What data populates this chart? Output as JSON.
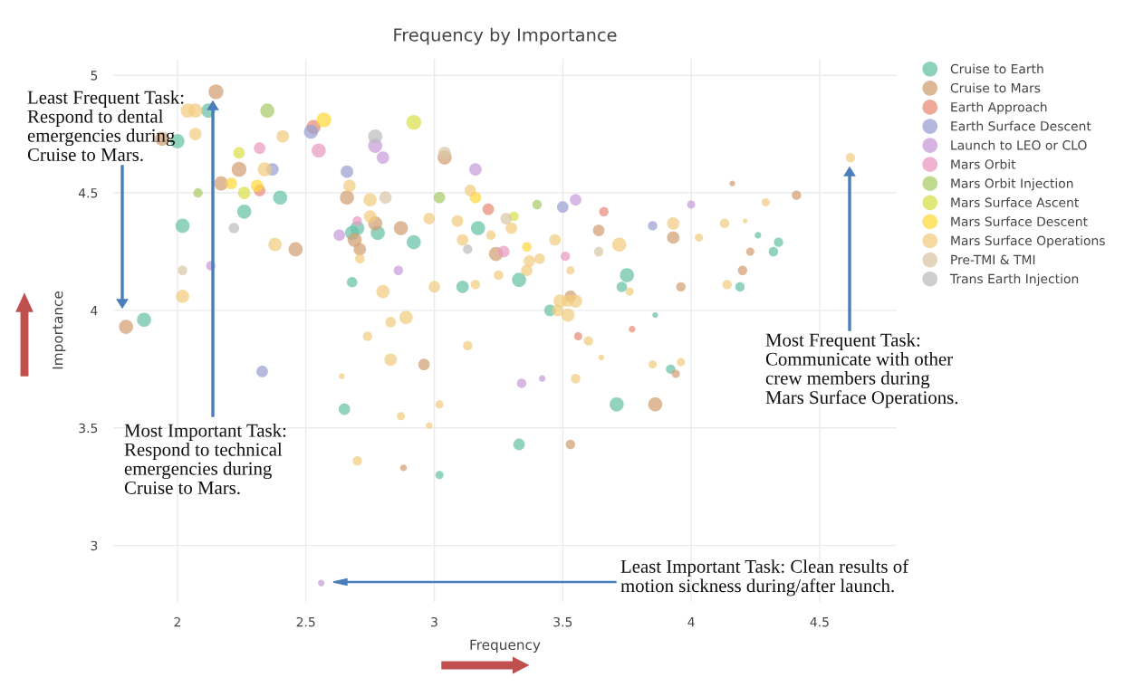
{
  "chart_data": {
    "type": "bubble",
    "title": "Frequency by Importance",
    "xlabel": "Frequency",
    "ylabel": "Importance",
    "xlim": [
      1.75,
      4.8
    ],
    "ylim": [
      2.76,
      5.07
    ],
    "xticks": [
      2,
      2.5,
      3,
      3.5,
      4,
      4.5
    ],
    "yticks": [
      3,
      3.5,
      4,
      4.5,
      5
    ],
    "grid": true,
    "legend": "top right",
    "marker": "circle",
    "series": [
      {
        "name": "Cruise to Earth",
        "color": "#66c2a5",
        "x": [
          2.12,
          2.0,
          2.4,
          2.26,
          2.02,
          1.87,
          2.7,
          2.68,
          2.78,
          2.68,
          3.17,
          2.92,
          3.11,
          3.33,
          3.45,
          3.75,
          3.73,
          3.86,
          3.92,
          4.26,
          4.34,
          4.32,
          4.19,
          2.65,
          3.71,
          3.33,
          3.02
        ],
        "values": [
          4.85,
          4.72,
          4.48,
          4.42,
          4.36,
          3.96,
          4.35,
          4.33,
          4.33,
          4.12,
          4.35,
          4.29,
          4.1,
          4.13,
          4.0,
          4.15,
          4.1,
          3.98,
          3.75,
          4.32,
          4.29,
          4.25,
          4.1,
          3.58,
          3.6,
          3.43,
          3.3
        ],
        "sizes": [
          0.9,
          0.9,
          0.9,
          0.9,
          0.9,
          0.9,
          0.9,
          0.9,
          0.9,
          0.5,
          0.9,
          0.9,
          0.7,
          0.9,
          0.6,
          0.9,
          0.5,
          0.15,
          0.4,
          0.2,
          0.4,
          0.4,
          0.4,
          0.6,
          0.9,
          0.6,
          0.3
        ]
      },
      {
        "name": "Cruise to Mars",
        "color": "#d2a073",
        "x": [
          2.15,
          1.94,
          2.24,
          2.17,
          2.66,
          2.77,
          2.69,
          2.71,
          2.46,
          3.04,
          2.87,
          3.24,
          3.64,
          3.53,
          4.16,
          4.41,
          3.93,
          4.23,
          4.2,
          3.96,
          1.8,
          2.96,
          3.94,
          3.86,
          3.53,
          2.88
        ],
        "values": [
          4.93,
          4.73,
          4.6,
          4.54,
          4.48,
          4.37,
          4.3,
          4.26,
          4.26,
          4.65,
          4.35,
          4.24,
          4.34,
          4.06,
          4.54,
          4.49,
          4.31,
          4.25,
          4.17,
          4.1,
          3.93,
          3.77,
          3.73,
          3.6,
          3.43,
          3.33
        ],
        "sizes": [
          1,
          0.9,
          1,
          0.9,
          0.9,
          0.9,
          0.9,
          0.7,
          0.9,
          0.9,
          0.9,
          0.9,
          0.6,
          0.6,
          0.15,
          0.4,
          0.7,
          0.3,
          0.4,
          0.4,
          0.9,
          0.6,
          0.3,
          0.9,
          0.4,
          0.2
        ]
      },
      {
        "name": "Earth Approach",
        "color": "#e88c78",
        "x": [
          2.53,
          2.32,
          3.21,
          3.66,
          3.56,
          3.77
        ],
        "values": [
          4.78,
          4.51,
          4.43,
          4.42,
          3.89,
          3.92
        ],
        "sizes": [
          0.9,
          0.6,
          0.6,
          0.4,
          0.3,
          0.2
        ]
      },
      {
        "name": "Earth Surface Descent",
        "color": "#9aa0d0",
        "x": [
          2.52,
          2.37,
          2.66,
          3.5,
          3.85,
          2.33
        ],
        "values": [
          4.76,
          4.6,
          4.59,
          4.44,
          4.36,
          3.74
        ],
        "sizes": [
          0.9,
          0.7,
          0.7,
          0.6,
          0.4,
          0.6
        ]
      },
      {
        "name": "Launch to LEO or CLO",
        "color": "#c79bd8",
        "x": [
          2.77,
          2.8,
          3.16,
          3.55,
          2.63,
          2.86,
          2.13,
          4.0,
          3.34,
          3.42,
          2.56
        ],
        "values": [
          4.7,
          4.65,
          4.6,
          4.47,
          4.32,
          4.17,
          4.19,
          4.45,
          3.69,
          3.71,
          2.84
        ],
        "sizes": [
          0.9,
          0.7,
          0.7,
          0.6,
          0.6,
          0.4,
          0.4,
          0.3,
          0.4,
          0.2,
          0.2
        ]
      },
      {
        "name": "Mars Orbit",
        "color": "#e99ac0",
        "x": [
          2.32,
          2.55,
          2.7,
          3.27,
          3.51
        ],
        "values": [
          4.69,
          4.68,
          4.38,
          4.25,
          4.23
        ],
        "sizes": [
          0.6,
          0.9,
          0.4,
          0.6,
          0.4
        ]
      },
      {
        "name": "Mars Orbit Injection",
        "color": "#a9cc6a",
        "x": [
          2.35,
          2.08,
          3.02,
          3.4
        ],
        "values": [
          4.85,
          4.5,
          4.48,
          4.45
        ],
        "sizes": [
          0.9,
          0.4,
          0.6,
          0.4
        ]
      },
      {
        "name": "Mars Surface Ascent",
        "color": "#d8e04a",
        "x": [
          2.92,
          2.24,
          2.26,
          3.31
        ],
        "values": [
          4.8,
          4.67,
          4.5,
          4.4
        ],
        "sizes": [
          1,
          0.6,
          0.7,
          0.4
        ]
      },
      {
        "name": "Mars Surface Descent",
        "color": "#ffd93f",
        "x": [
          2.57,
          2.21,
          2.31,
          3.16,
          3.36
        ],
        "values": [
          4.81,
          4.54,
          4.53,
          4.48,
          4.27
        ],
        "sizes": [
          1,
          0.6,
          0.7,
          0.6,
          0.4
        ]
      },
      {
        "name": "Mars Surface Operations",
        "color": "#f2cc80",
        "x": [
          2.04,
          2.07,
          2.07,
          2.41,
          2.34,
          2.67,
          2.75,
          2.75,
          2.71,
          2.38,
          2.02,
          2.8,
          3.14,
          2.98,
          3.09,
          3.3,
          3.11,
          3.22,
          3.41,
          3.37,
          3.36,
          3.47,
          3.72,
          3.53,
          3.76,
          3.0,
          3.16,
          3.25,
          3.49,
          3.52,
          3.55,
          3.48,
          3.52,
          2.83,
          2.89,
          4.62,
          4.29,
          3.93,
          4.03,
          4.13,
          4.21,
          4.14,
          2.64,
          2.74,
          2.7,
          3.13,
          2.83,
          3.02,
          2.87,
          2.98,
          3.6,
          3.65,
          3.55,
          3.85,
          3.96
        ],
        "values": [
          4.85,
          4.85,
          4.75,
          4.74,
          4.6,
          4.53,
          4.47,
          4.4,
          4.22,
          4.28,
          4.06,
          4.08,
          4.51,
          4.39,
          4.38,
          4.35,
          4.3,
          4.32,
          4.22,
          4.21,
          4.17,
          4.3,
          4.28,
          4.17,
          4.08,
          4.1,
          4.11,
          4.15,
          4.04,
          4.04,
          4.04,
          4.0,
          3.98,
          3.95,
          3.97,
          4.65,
          4.46,
          4.37,
          4.31,
          4.37,
          4.38,
          4.11,
          3.72,
          3.89,
          3.36,
          3.85,
          3.79,
          3.6,
          3.55,
          3.51,
          3.87,
          3.8,
          3.71,
          3.77,
          3.78
        ],
        "sizes": [
          0.9,
          0.9,
          0.7,
          0.7,
          0.9,
          0.7,
          0.8,
          0.7,
          0.4,
          0.8,
          0.8,
          0.8,
          0.6,
          0.6,
          0.6,
          0.6,
          0.6,
          0.4,
          0.5,
          0.6,
          0.6,
          0.6,
          0.9,
          0.3,
          0.3,
          0.6,
          0.4,
          0.4,
          0.8,
          0.6,
          0.8,
          0.6,
          0.8,
          0.5,
          0.8,
          0.4,
          0.3,
          0.7,
          0.3,
          0.4,
          0.1,
          0.4,
          0.15,
          0.4,
          0.4,
          0.4,
          0.7,
          0.3,
          0.3,
          0.2,
          0.4,
          0.15,
          0.4,
          0.3,
          0.3
        ]
      },
      {
        "name": "Pre-TMI & TMI",
        "color": "#d9c7a7",
        "x": [
          3.04,
          2.81,
          3.28,
          3.64,
          2.02
        ],
        "values": [
          4.67,
          4.48,
          4.39,
          4.25,
          4.17
        ],
        "sizes": [
          0.7,
          0.7,
          0.6,
          0.4,
          0.4
        ]
      },
      {
        "name": "Trans Earth Injection",
        "color": "#bdbdbd",
        "x": [
          2.77,
          2.22,
          3.13
        ],
        "values": [
          4.74,
          4.35,
          4.26
        ],
        "sizes": [
          0.9,
          0.5,
          0.4
        ]
      }
    ],
    "annotations": [
      "Least Frequent Task:\nRespond to dental\nemergencies during\nCruise to Mars.",
      "Most Important Task:\nRespond to technical\nemergencies during\nCruise to Mars.",
      "Most Frequent Task:\nCommunicate with other\ncrew members during\nMars Surface Operations.",
      "Least Important Task: Clean results of\nmotion sickness during/after launch."
    ]
  }
}
